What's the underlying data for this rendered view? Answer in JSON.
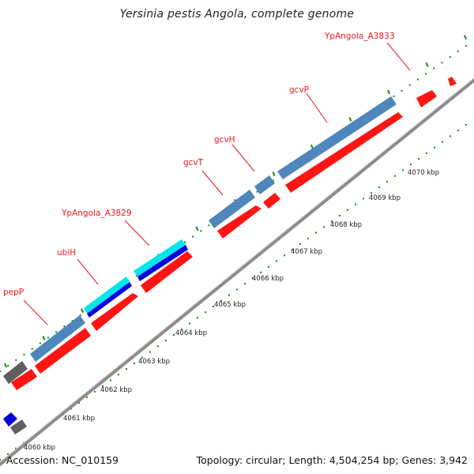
{
  "title": "Yersinia pestis Angola, complete genome",
  "footer": {
    "accession": "Accession: NC_010159",
    "stats": "Topology: circular; Length: 4,504,254 bp; Genes: 3,942"
  },
  "colors": {
    "backbone": "#8c8c8c",
    "forward_cds": "#4f86bb",
    "forward_rna": "#00e5ee",
    "reverse_cds": "#ff1414",
    "other": "#5f5f5f",
    "navy": "#0000dd",
    "tick": "#138a13",
    "label": "#e8181d"
  },
  "gene_labels": [
    "pepP",
    "ubiH",
    "YpAngola_A3829",
    "gcvT",
    "gcvH",
    "gcvP",
    "YpAngola_A3833"
  ],
  "scale_labels": [
    "4060 kbp",
    "4061 kbp",
    "4062 kbp",
    "4063 kbp",
    "4064 kbp",
    "4065 kbp",
    "4066 kbp",
    "4067 kbp",
    "4068 kbp",
    "4069 kbp",
    "4070 kbp"
  ]
}
